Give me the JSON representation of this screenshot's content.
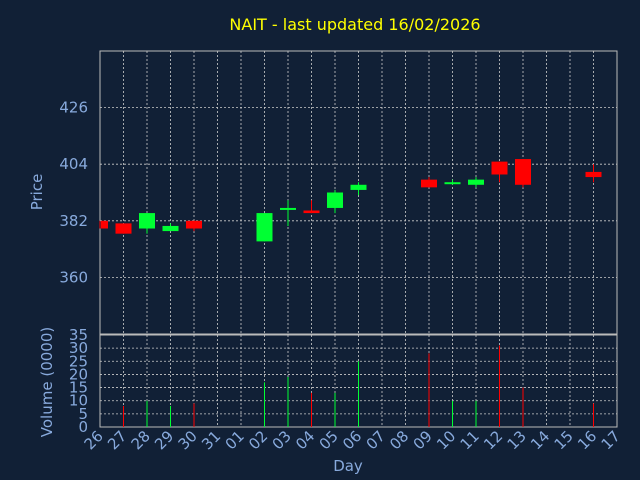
{
  "title": "NAIT - last updated 16/02/2026",
  "colors": {
    "background": "#112036",
    "up": "#00ff33",
    "down": "#ff0000",
    "grid": "#cccccc",
    "frame": "#bbbbbb",
    "title": "#ffff00",
    "axis_text": "#88aadd"
  },
  "chart_data": [
    {
      "type": "candlestick",
      "ylabel": "Price",
      "ylim": [
        338,
        448
      ],
      "yticks": [
        360,
        382,
        404,
        426
      ],
      "grid": true,
      "x_labels": [
        "26",
        "27",
        "28",
        "29",
        "30",
        "31",
        "01",
        "02",
        "03",
        "04",
        "05",
        "06",
        "07",
        "08",
        "09",
        "10",
        "11",
        "12",
        "13",
        "14",
        "15",
        "16",
        "17"
      ],
      "candles": [
        {
          "x": 0,
          "open": 382,
          "high": 382,
          "low": 379,
          "close": 379
        },
        {
          "x": 1,
          "open": 381,
          "high": 381,
          "low": 377,
          "close": 377
        },
        {
          "x": 2,
          "open": 379,
          "high": 385,
          "low": 377,
          "close": 385
        },
        {
          "x": 3,
          "open": 378,
          "high": 381,
          "low": 378,
          "close": 380
        },
        {
          "x": 4,
          "open": 382,
          "high": 382,
          "low": 378,
          "close": 379
        },
        {
          "x": 7,
          "open": 374,
          "high": 385,
          "low": 374,
          "close": 385
        },
        {
          "x": 8,
          "open": 387,
          "high": 390,
          "low": 380,
          "close": 387
        },
        {
          "x": 9,
          "open": 386,
          "high": 390,
          "low": 385,
          "close": 385
        },
        {
          "x": 10,
          "open": 387,
          "high": 394,
          "low": 385,
          "close": 393
        },
        {
          "x": 11,
          "open": 394,
          "high": 397,
          "low": 392,
          "close": 396
        },
        {
          "x": 14,
          "open": 398,
          "high": 399,
          "low": 395,
          "close": 395
        },
        {
          "x": 15,
          "open": 397,
          "high": 398,
          "low": 396,
          "close": 397
        },
        {
          "x": 16,
          "open": 396,
          "high": 399,
          "low": 395,
          "close": 398
        },
        {
          "x": 17,
          "open": 405,
          "high": 405,
          "low": 397,
          "close": 400
        },
        {
          "x": 18,
          "open": 406,
          "high": 406,
          "low": 395,
          "close": 396
        },
        {
          "x": 21,
          "open": 401,
          "high": 404,
          "low": 397,
          "close": 399
        }
      ]
    },
    {
      "type": "bar",
      "ylabel": "Volume (0000)",
      "xlabel": "Day",
      "ylim": [
        0,
        35
      ],
      "yticks": [
        0,
        5,
        10,
        15,
        20,
        25,
        30,
        35
      ],
      "grid": true,
      "volumes": [
        {
          "x": 1,
          "value": 8,
          "dir": "down"
        },
        {
          "x": 2,
          "value": 10,
          "dir": "up"
        },
        {
          "x": 3,
          "value": 8,
          "dir": "up"
        },
        {
          "x": 4,
          "value": 9,
          "dir": "down"
        },
        {
          "x": 7,
          "value": 17,
          "dir": "up"
        },
        {
          "x": 8,
          "value": 19,
          "dir": "up"
        },
        {
          "x": 9,
          "value": 13,
          "dir": "down"
        },
        {
          "x": 10,
          "value": 13,
          "dir": "up"
        },
        {
          "x": 11,
          "value": 25,
          "dir": "up"
        },
        {
          "x": 14,
          "value": 28,
          "dir": "down"
        },
        {
          "x": 15,
          "value": 10,
          "dir": "up"
        },
        {
          "x": 16,
          "value": 10,
          "dir": "up"
        },
        {
          "x": 17,
          "value": 31,
          "dir": "down"
        },
        {
          "x": 18,
          "value": 15,
          "dir": "down"
        },
        {
          "x": 21,
          "value": 9,
          "dir": "down"
        }
      ]
    }
  ]
}
